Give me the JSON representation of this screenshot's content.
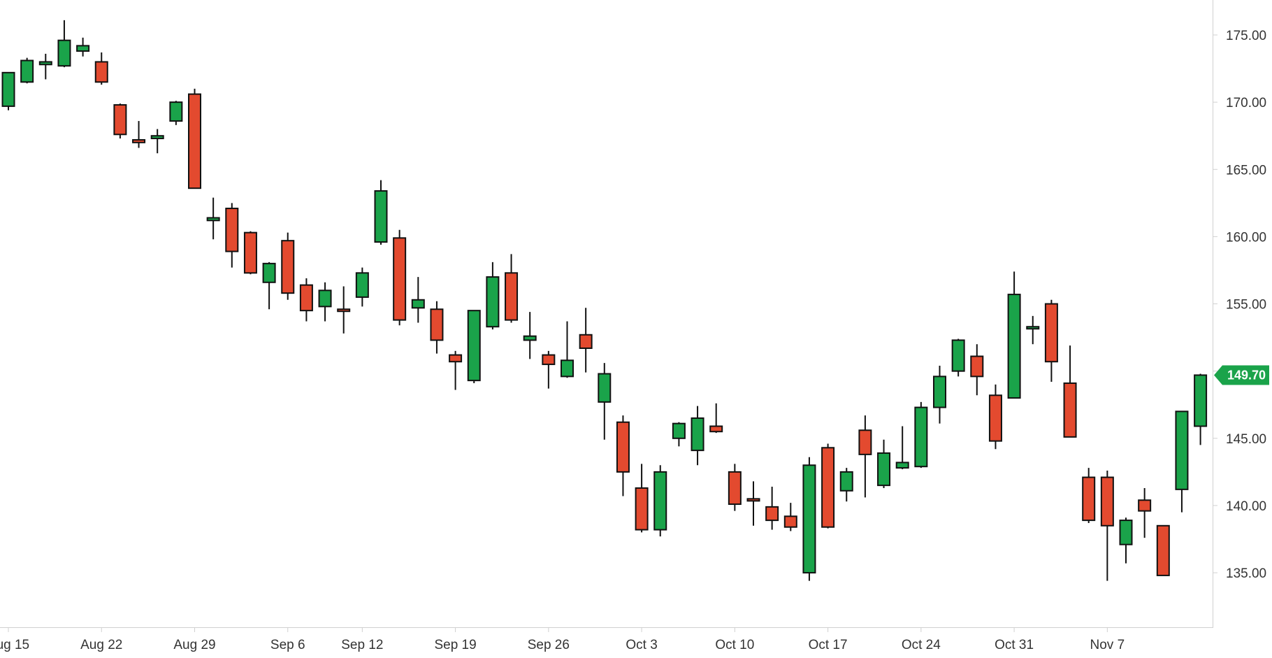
{
  "chart_data": {
    "type": "candlestick",
    "x_tick_labels": [
      "Aug 15",
      "Aug 22",
      "Aug 29",
      "Sep 6",
      "Sep 12",
      "Sep 19",
      "Sep 26",
      "Oct 3",
      "Oct 10",
      "Oct 17",
      "Oct 24",
      "Oct 31",
      "Nov 7"
    ],
    "y_tick_labels": [
      "175.00",
      "170.00",
      "165.00",
      "160.00",
      "155.00",
      "150.00",
      "145.00",
      "140.00",
      "135.00"
    ],
    "y_ticks": [
      175,
      170,
      165,
      160,
      155,
      150,
      145,
      140,
      135
    ],
    "ylim": [
      131,
      177.6
    ],
    "last_price_label": "149.70",
    "colors": {
      "up": "#1aa34a",
      "down": "#e34a2f",
      "wick": "#111111",
      "price_tag": "#1aa34a",
      "axis": "#cccccc",
      "tick_text": "#333333"
    },
    "candles": [
      {
        "date": "Aug 15",
        "open": 169.7,
        "high": 172.2,
        "low": 169.4,
        "close": 172.2
      },
      {
        "date": "Aug 16",
        "open": 171.5,
        "high": 173.3,
        "low": 171.4,
        "close": 173.1
      },
      {
        "date": "Aug 17",
        "open": 172.8,
        "high": 173.6,
        "low": 171.7,
        "close": 173.0
      },
      {
        "date": "Aug 18",
        "open": 172.7,
        "high": 176.1,
        "low": 172.6,
        "close": 174.6
      },
      {
        "date": "Aug 19",
        "open": 173.8,
        "high": 174.8,
        "low": 173.4,
        "close": 174.2
      },
      {
        "date": "Aug 22",
        "open": 173.0,
        "high": 173.7,
        "low": 171.3,
        "close": 171.5
      },
      {
        "date": "Aug 23",
        "open": 169.8,
        "high": 169.9,
        "low": 167.3,
        "close": 167.6
      },
      {
        "date": "Aug 24",
        "open": 167.2,
        "high": 168.6,
        "low": 166.6,
        "close": 167.0
      },
      {
        "date": "Aug 25",
        "open": 167.3,
        "high": 168.0,
        "low": 166.2,
        "close": 167.5
      },
      {
        "date": "Aug 26",
        "open": 168.6,
        "high": 170.1,
        "low": 168.3,
        "close": 170.0
      },
      {
        "date": "Aug 29",
        "open": 170.6,
        "high": 171.0,
        "low": 163.6,
        "close": 163.6
      },
      {
        "date": "Aug 30",
        "open": 161.2,
        "high": 162.9,
        "low": 159.8,
        "close": 161.4
      },
      {
        "date": "Aug 31",
        "open": 162.1,
        "high": 162.5,
        "low": 157.7,
        "close": 158.9
      },
      {
        "date": "Sep 1",
        "open": 160.3,
        "high": 160.4,
        "low": 157.2,
        "close": 157.3
      },
      {
        "date": "Sep 2",
        "open": 156.6,
        "high": 158.1,
        "low": 154.6,
        "close": 158.0
      },
      {
        "date": "Sep 6",
        "open": 159.7,
        "high": 160.3,
        "low": 155.3,
        "close": 155.8
      },
      {
        "date": "Sep 7",
        "open": 156.4,
        "high": 156.9,
        "low": 153.7,
        "close": 154.5
      },
      {
        "date": "Sep 8",
        "open": 154.8,
        "high": 156.6,
        "low": 153.7,
        "close": 156.0
      },
      {
        "date": "Sep 9",
        "open": 154.6,
        "high": 156.3,
        "low": 152.8,
        "close": 154.5
      },
      {
        "date": "Sep 12",
        "open": 155.5,
        "high": 157.7,
        "low": 154.8,
        "close": 157.3
      },
      {
        "date": "Sep 13",
        "open": 159.6,
        "high": 164.2,
        "low": 159.4,
        "close": 163.4
      },
      {
        "date": "Sep 14",
        "open": 159.9,
        "high": 160.5,
        "low": 153.4,
        "close": 153.8
      },
      {
        "date": "Sep 15",
        "open": 154.7,
        "high": 157.0,
        "low": 153.6,
        "close": 155.3
      },
      {
        "date": "Sep 16",
        "open": 154.6,
        "high": 155.2,
        "low": 151.3,
        "close": 152.3
      },
      {
        "date": "Sep 19",
        "open": 151.2,
        "high": 151.5,
        "low": 148.6,
        "close": 150.7
      },
      {
        "date": "Sep 20",
        "open": 149.3,
        "high": 154.5,
        "low": 149.1,
        "close": 154.5
      },
      {
        "date": "Sep 21",
        "open": 153.3,
        "high": 158.1,
        "low": 153.1,
        "close": 157.0
      },
      {
        "date": "Sep 22",
        "open": 157.3,
        "high": 158.7,
        "low": 153.6,
        "close": 153.8
      },
      {
        "date": "Sep 23",
        "open": 152.3,
        "high": 154.4,
        "low": 150.9,
        "close": 152.6
      },
      {
        "date": "Sep 26",
        "open": 151.2,
        "high": 151.5,
        "low": 148.7,
        "close": 150.5
      },
      {
        "date": "Sep 27",
        "open": 149.6,
        "high": 153.7,
        "low": 149.5,
        "close": 150.8
      },
      {
        "date": "Sep 28",
        "open": 152.7,
        "high": 154.7,
        "low": 149.9,
        "close": 151.7
      },
      {
        "date": "Sep 29",
        "open": 147.7,
        "high": 150.6,
        "low": 144.9,
        "close": 149.8
      },
      {
        "date": "Sep 30",
        "open": 146.2,
        "high": 146.7,
        "low": 140.7,
        "close": 142.5
      },
      {
        "date": "Oct 3",
        "open": 141.3,
        "high": 143.1,
        "low": 138.0,
        "close": 138.2
      },
      {
        "date": "Oct 4",
        "open": 138.2,
        "high": 143.0,
        "low": 137.7,
        "close": 142.5
      },
      {
        "date": "Oct 5",
        "open": 145.0,
        "high": 146.2,
        "low": 144.4,
        "close": 146.1
      },
      {
        "date": "Oct 6",
        "open": 144.1,
        "high": 147.4,
        "low": 143.0,
        "close": 146.5
      },
      {
        "date": "Oct 7",
        "open": 145.9,
        "high": 147.6,
        "low": 145.4,
        "close": 145.5
      },
      {
        "date": "Oct 10",
        "open": 142.5,
        "high": 143.1,
        "low": 139.6,
        "close": 140.1
      },
      {
        "date": "Oct 11",
        "open": 140.5,
        "high": 141.8,
        "low": 138.5,
        "close": 140.4
      },
      {
        "date": "Oct 12",
        "open": 139.9,
        "high": 141.4,
        "low": 138.2,
        "close": 138.9
      },
      {
        "date": "Oct 13",
        "open": 139.2,
        "high": 140.2,
        "low": 138.1,
        "close": 138.4
      },
      {
        "date": "Oct 14",
        "open": 135.0,
        "high": 143.6,
        "low": 134.4,
        "close": 143.0
      },
      {
        "date": "Oct 17",
        "open": 144.3,
        "high": 144.6,
        "low": 138.3,
        "close": 138.4
      },
      {
        "date": "Oct 18",
        "open": 141.1,
        "high": 142.8,
        "low": 140.3,
        "close": 142.5
      },
      {
        "date": "Oct 19",
        "open": 145.6,
        "high": 146.7,
        "low": 140.6,
        "close": 143.8
      },
      {
        "date": "Oct 20",
        "open": 141.5,
        "high": 144.9,
        "low": 141.3,
        "close": 143.9
      },
      {
        "date": "Oct 21",
        "open": 142.8,
        "high": 145.9,
        "low": 142.7,
        "close": 143.2
      },
      {
        "date": "Oct 24",
        "open": 142.9,
        "high": 147.7,
        "low": 142.8,
        "close": 147.3
      },
      {
        "date": "Oct 25",
        "open": 147.3,
        "high": 150.4,
        "low": 146.1,
        "close": 149.6
      },
      {
        "date": "Oct 26",
        "open": 150.0,
        "high": 152.4,
        "low": 149.6,
        "close": 152.3
      },
      {
        "date": "Oct 27",
        "open": 151.1,
        "high": 152.0,
        "low": 148.2,
        "close": 149.6
      },
      {
        "date": "Oct 28",
        "open": 148.2,
        "high": 149.0,
        "low": 144.2,
        "close": 144.8
      },
      {
        "date": "Oct 31",
        "open": 148.0,
        "high": 157.4,
        "low": 148.0,
        "close": 155.7
      },
      {
        "date": "Nov 1",
        "open": 153.2,
        "high": 154.1,
        "low": 152.0,
        "close": 153.3
      },
      {
        "date": "Nov 2",
        "open": 155.0,
        "high": 155.3,
        "low": 149.2,
        "close": 150.7
      },
      {
        "date": "Nov 3",
        "open": 149.1,
        "high": 151.9,
        "low": 145.1,
        "close": 145.1
      },
      {
        "date": "Nov 4",
        "open": 142.1,
        "high": 142.8,
        "low": 138.7,
        "close": 138.9
      },
      {
        "date": "Nov 7",
        "open": 142.1,
        "high": 142.6,
        "low": 134.4,
        "close": 138.5
      },
      {
        "date": "Nov 8",
        "open": 137.1,
        "high": 139.1,
        "low": 135.7,
        "close": 138.9
      },
      {
        "date": "Nov 9",
        "open": 140.4,
        "high": 141.3,
        "low": 137.6,
        "close": 139.6
      },
      {
        "date": "Nov 10",
        "open": 138.5,
        "high": 138.5,
        "low": 134.8,
        "close": 134.8
      },
      {
        "date": "Nov 11",
        "open": 141.2,
        "high": 147.0,
        "low": 139.5,
        "close": 147.0
      },
      {
        "date": "Nov 14",
        "open": 145.9,
        "high": 149.8,
        "low": 144.5,
        "close": 149.7
      }
    ]
  }
}
